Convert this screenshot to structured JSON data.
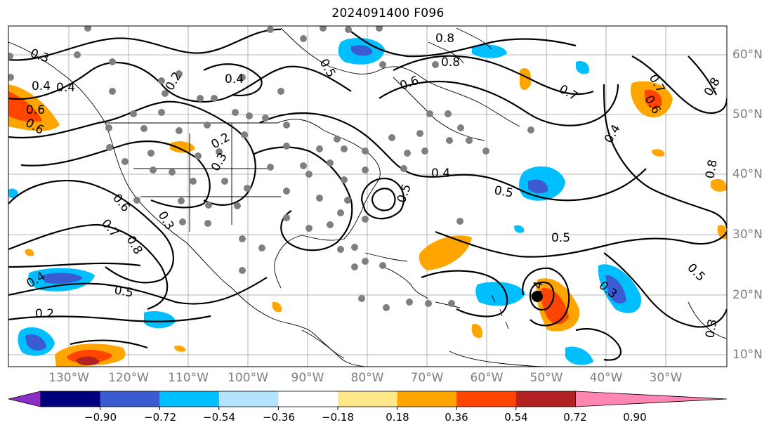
{
  "title": "2024091400 F096",
  "lon_labels": [
    "130°W",
    "120°W",
    "110°W",
    "100°W",
    "90°W",
    "80°W",
    "70°W",
    "60°W",
    "50°W",
    "40°W",
    "30°W"
  ],
  "lat_labels": [
    "60°N",
    "50°N",
    "40°N",
    "30°N",
    "20°N",
    "10°N"
  ],
  "colorbar": {
    "ticks": [
      "−0.90",
      "−0.72",
      "−0.54",
      "−0.36",
      "−0.18",
      "0.18",
      "0.36",
      "0.54",
      "0.72",
      "0.90"
    ],
    "colors": [
      "#8b2fc9",
      "#00007f",
      "#3b5bd3",
      "#00bfff",
      "#b3e3ff",
      "#ffffff",
      "#ffe88a",
      "#ffa500",
      "#ff4500",
      "#b22222",
      "#ff85b3"
    ]
  },
  "contour_labels": [
    "0.3",
    "0.4",
    "0.4",
    "0.6",
    "0.6",
    "0.2",
    "0.4",
    "0.2",
    "0.3",
    "0.5",
    "0.6",
    "0.8",
    "0.8",
    "0.7",
    "0.6",
    "0.4",
    "0.3",
    "0.5",
    "0.4",
    "0.5",
    "0.6",
    "0.7",
    "0.8",
    "0.5",
    "0.5",
    "0.4",
    "0.2",
    "0.5",
    "0.4",
    "0.3",
    "0.8",
    "0.7",
    "0.8",
    "0.3"
  ],
  "contour_label_positions_note": ""
}
